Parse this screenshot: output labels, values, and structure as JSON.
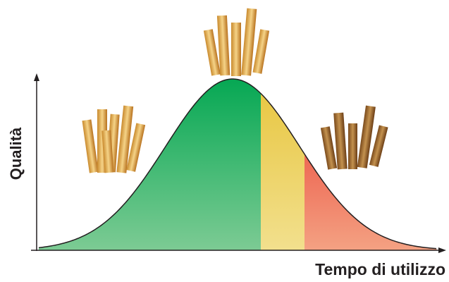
{
  "axes": {
    "y_label": "Qualità",
    "x_label": "Tempo di utilizzo"
  }
}
